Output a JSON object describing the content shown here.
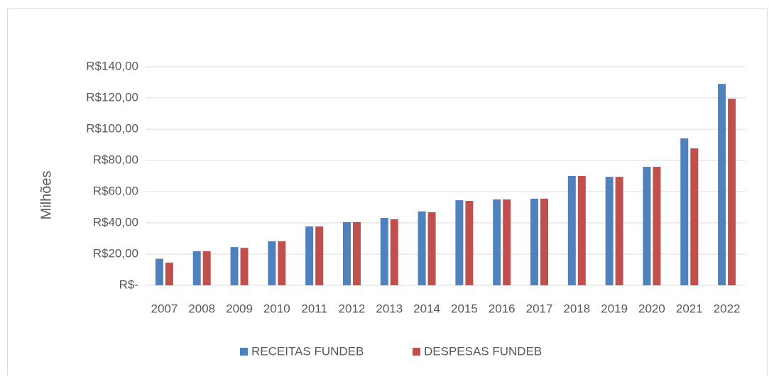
{
  "chart_data": {
    "type": "bar",
    "y_label": "Milhões",
    "categories": [
      "2007",
      "2008",
      "2009",
      "2010",
      "2011",
      "2012",
      "2013",
      "2014",
      "2015",
      "2016",
      "2017",
      "2018",
      "2019",
      "2020",
      "2021",
      "2022"
    ],
    "series": [
      {
        "name": "RECEITAS FUNDEB",
        "color": "#4f81bd",
        "values": [
          17,
          21.8,
          24.5,
          28.2,
          37.7,
          40.5,
          43.2,
          47.3,
          54.5,
          55,
          55.5,
          70,
          69.5,
          75.9,
          94.1,
          129
        ]
      },
      {
        "name": "DESPESAS FUNDEB",
        "color": "#c0504d",
        "values": [
          14.5,
          21.8,
          24,
          28.2,
          37.7,
          40.5,
          42.3,
          46.8,
          54.1,
          55,
          55.5,
          70,
          69.5,
          75.9,
          87.7,
          119.5
        ]
      }
    ],
    "ylim": [
      0,
      140
    ],
    "yticks": [
      {
        "value": 0,
        "label": "R$-"
      },
      {
        "value": 20,
        "label": "R$20,00"
      },
      {
        "value": 40,
        "label": "R$40,00"
      },
      {
        "value": 60,
        "label": "R$60,00"
      },
      {
        "value": 80,
        "label": "R$80,00"
      },
      {
        "value": 100,
        "label": "R$100,00"
      },
      {
        "value": 120,
        "label": "R$120,00"
      },
      {
        "value": 140,
        "label": "R$140,00"
      }
    ],
    "grid": true,
    "legend": "bottom"
  }
}
